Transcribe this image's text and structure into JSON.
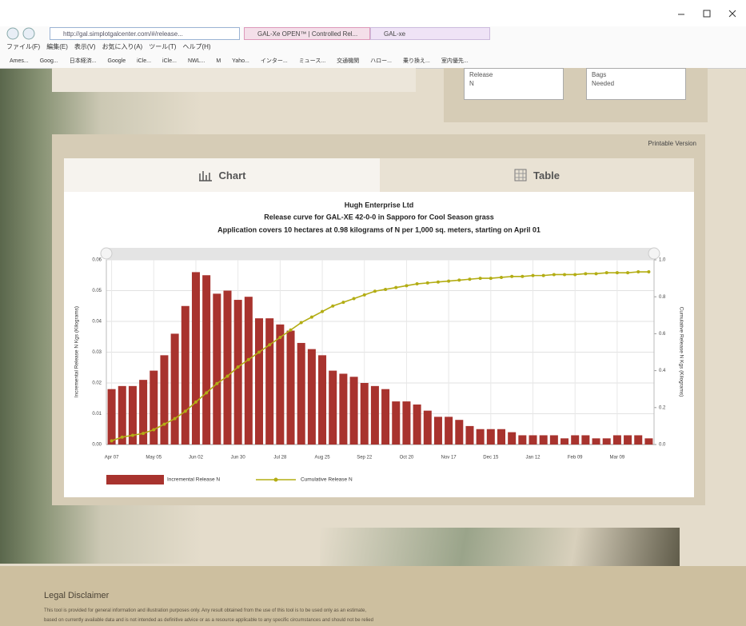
{
  "browser": {
    "url": "http://gal.simplotgalcenter.com/#/release...",
    "tabs": [
      "GAL-Xe OPEN™ | Controlled Rel...",
      "GAL-xe"
    ],
    "menu": [
      "ファイル(F)",
      "編集(E)",
      "表示(V)",
      "お気に入り(A)",
      "ツール(T)",
      "ヘルプ(H)"
    ],
    "favorites": [
      "Ames...",
      "Goog...",
      "日本経済...",
      "Google",
      "iCle...",
      "iCle...",
      "NWL...",
      "M",
      "Yaho...",
      "インター...",
      "ミュース...",
      "交通機関",
      "ハロー...",
      "乗り換え...",
      "室内優先..."
    ]
  },
  "summary": {
    "left_box": [
      "Release",
      "N"
    ],
    "right_box": [
      "Bags",
      "Needed"
    ]
  },
  "printable_link": "Printable Version",
  "view_tabs": [
    "Chart",
    "Table"
  ],
  "chart_data": {
    "type": "combo",
    "title": "Hugh Enterprise Ltd",
    "subtitle": "Release curve for GAL-XE 42-0-0 in Sapporo for Cool Season grass",
    "subtitle2": "Application covers 10 hectares at 0.98 kilograms of N per 1,000 sq. meters, starting on April 01",
    "ylabel": "Incremental Release N Kgs (Kilograms)",
    "y2label": "Cumulative Release N Kgs (Kilograms)",
    "categories": [
      "Apr 07",
      null,
      null,
      null,
      "May 05",
      null,
      null,
      null,
      "Jun 02",
      null,
      null,
      null,
      "Jun 30",
      null,
      null,
      null,
      "Jul 28",
      null,
      null,
      null,
      "Aug 25",
      null,
      null,
      null,
      "Sep 22",
      null,
      null,
      null,
      "Oct 20",
      null,
      null,
      null,
      "Nov 17",
      null,
      null,
      null,
      "Dec 15",
      null,
      null,
      null,
      "Jan 12",
      null,
      null,
      null,
      "Feb 09",
      null,
      null,
      null,
      "Mar 09",
      null,
      null,
      null
    ],
    "series": [
      {
        "name": "Incremental Release N",
        "type": "bar",
        "color": "#a8332e",
        "values": [
          0.018,
          0.019,
          0.019,
          0.021,
          0.024,
          0.029,
          0.036,
          0.045,
          0.056,
          0.055,
          0.049,
          0.05,
          0.047,
          0.048,
          0.041,
          0.041,
          0.039,
          0.037,
          0.033,
          0.031,
          0.029,
          0.024,
          0.023,
          0.022,
          0.02,
          0.019,
          0.018,
          0.014,
          0.014,
          0.013,
          0.011,
          0.009,
          0.009,
          0.008,
          0.006,
          0.005,
          0.005,
          0.005,
          0.004,
          0.003,
          0.003,
          0.003,
          0.003,
          0.002,
          0.003,
          0.003,
          0.002,
          0.002,
          0.003,
          0.003,
          0.003,
          0.002
        ]
      },
      {
        "name": "Cumulative Release N",
        "type": "line",
        "axis": "y2",
        "color": "#b3ad14",
        "values": [
          0.02,
          0.04,
          0.05,
          0.06,
          0.08,
          0.11,
          0.14,
          0.18,
          0.23,
          0.28,
          0.33,
          0.37,
          0.42,
          0.46,
          0.5,
          0.54,
          0.58,
          0.62,
          0.66,
          0.69,
          0.72,
          0.75,
          0.77,
          0.79,
          0.81,
          0.83,
          0.84,
          0.85,
          0.86,
          0.87,
          0.875,
          0.88,
          0.885,
          0.89,
          0.895,
          0.9,
          0.9,
          0.905,
          0.91,
          0.91,
          0.915,
          0.915,
          0.92,
          0.92,
          0.92,
          0.925,
          0.925,
          0.93,
          0.93,
          0.93,
          0.935,
          0.935
        ]
      }
    ],
    "ylim": [
      0,
      0.06
    ],
    "yticks": [
      {
        "value": 0,
        "label": "0.00"
      },
      0.01,
      0.02,
      0.03,
      0.04,
      0.05,
      0.06
    ],
    "y2lim": [
      0,
      1
    ],
    "y2ticks": [
      {
        "value": 0,
        "label": "0.0"
      },
      0.2,
      0.4,
      0.6,
      0.8,
      {
        "value": 1,
        "label": "1.0"
      }
    ],
    "grid": true,
    "legend": "bottom-left"
  },
  "footer": {
    "title": "Legal Disclaimer",
    "lines": [
      "This tool is provided for general information and illustration purposes only. Any result obtained from the use of this tool is to be used only as an estimate,",
      "based on currently available data and is not intended as definitive advice or as a resource applicable to any specific circumstances and should not be relied"
    ]
  }
}
